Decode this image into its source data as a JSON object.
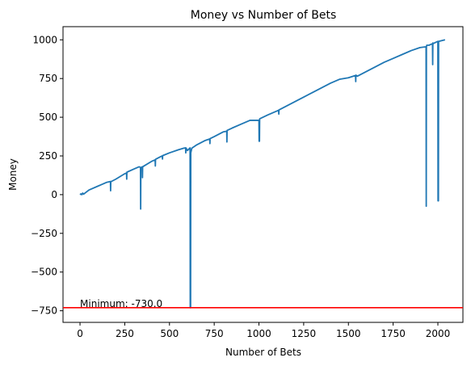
{
  "chart_data": {
    "type": "line",
    "title": "Money vs Number of Bets",
    "xlabel": "Number of Bets",
    "ylabel": "Money",
    "xlim": [
      -95,
      2140
    ],
    "ylim": [
      -825,
      1085
    ],
    "xticks": [
      0,
      250,
      500,
      750,
      1000,
      1250,
      1500,
      1750,
      2000
    ],
    "yticks": [
      -750,
      -500,
      -250,
      0,
      250,
      500,
      750,
      1000
    ],
    "xtick_labels": [
      "0",
      "250",
      "500",
      "750",
      "1000",
      "1250",
      "1500",
      "1750",
      "2000"
    ],
    "ytick_labels": [
      "−750",
      "−500",
      "−250",
      "0",
      "250",
      "500",
      "750",
      "1000"
    ],
    "grid": false,
    "series": [
      {
        "color": "#1f77b4",
        "x": [
          0,
          5,
          10,
          15,
          20,
          50,
          100,
          150,
          170,
          171,
          172,
          175,
          200,
          250,
          260,
          261,
          262,
          300,
          330,
          338,
          339,
          340,
          348,
          349,
          350,
          400,
          420,
          421,
          422,
          450,
          460,
          461,
          462,
          500,
          550,
          580,
          590,
          591,
          592,
          600,
          615,
          616,
          617,
          618,
          619,
          620,
          625,
          650,
          700,
          725,
          726,
          727,
          750,
          800,
          820,
          821,
          822,
          850,
          900,
          950,
          1000,
          1001,
          1002,
          1003,
          1004,
          1050,
          1100,
          1110,
          1111,
          1112,
          1150,
          1200,
          1250,
          1300,
          1350,
          1400,
          1450,
          1500,
          1540,
          1541,
          1542,
          1550,
          1600,
          1650,
          1700,
          1750,
          1800,
          1850,
          1900,
          1934,
          1935,
          1936,
          1937,
          1938,
          1950,
          1970,
          1971,
          1972,
          1973,
          1990,
          2000,
          2001,
          2002,
          2003,
          2004,
          2040
        ],
        "y": [
          0,
          5,
          0,
          10,
          3,
          30,
          55,
          80,
          85,
          25,
          85,
          85,
          100,
          135,
          140,
          100,
          145,
          165,
          180,
          176,
          -93,
          175,
          180,
          110,
          180,
          215,
          225,
          185,
          228,
          245,
          250,
          230,
          252,
          270,
          290,
          300,
          302,
          270,
          302,
          285,
          302,
          -730,
          270,
          -730,
          270,
          275,
          300,
          320,
          350,
          360,
          330,
          362,
          375,
          405,
          410,
          340,
          415,
          430,
          455,
          480,
          480,
          345,
          475,
          345,
          490,
          515,
          540,
          545,
          520,
          547,
          570,
          600,
          630,
          660,
          690,
          720,
          745,
          755,
          770,
          730,
          772,
          765,
          795,
          825,
          855,
          880,
          905,
          930,
          950,
          955,
          -75,
          955,
          960,
          965,
          965,
          975,
          840,
          980,
          975,
          985,
          990,
          -40,
          985,
          -40,
          990,
          1000
        ]
      },
      {
        "name": "Minimum",
        "type": "hline",
        "y": -730.0,
        "color": "#ff0000"
      }
    ],
    "annotations": [
      {
        "text": "Minimum: -730.0",
        "x": 0,
        "y": -730.0
      }
    ]
  }
}
